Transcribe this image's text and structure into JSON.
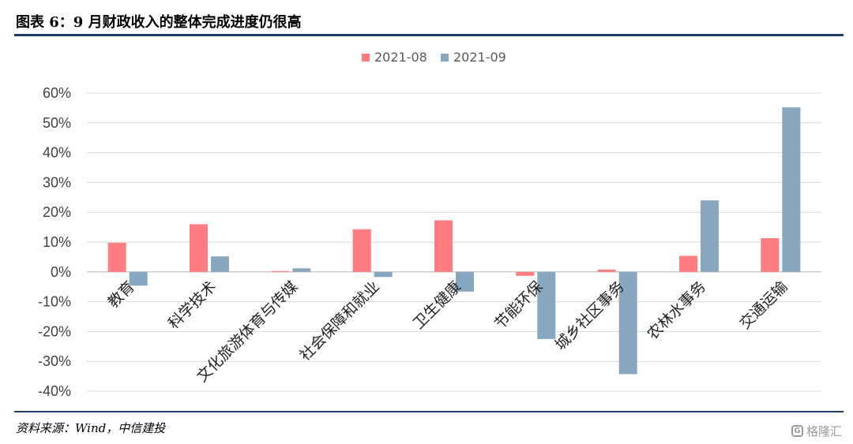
{
  "header": {
    "title": "图表 6：9 月财政收入的整体完成进度仍很高"
  },
  "footer": {
    "source": "资料来源：Wind，中信建投",
    "watermark_logo": "G",
    "watermark_text": "格隆汇"
  },
  "chart_data": {
    "type": "bar",
    "title": "",
    "xlabel": "",
    "ylabel": "",
    "ylim": [
      -40,
      60
    ],
    "yticks": [
      60,
      50,
      40,
      30,
      20,
      10,
      0,
      -10,
      -20,
      -30,
      -40
    ],
    "ytick_suffix": "%",
    "grid": true,
    "legend_position": "top-center",
    "categories": [
      "教育",
      "科学技术",
      "文化旅游体育与传媒",
      "社会保障和就业",
      "卫生健康",
      "节能环保",
      "城乡社区事务",
      "农林水事务",
      "交通运输"
    ],
    "series": [
      {
        "name": "2021-08",
        "color": "#ff7c80",
        "values": [
          9.8,
          16,
          0.3,
          14.3,
          17.3,
          -1.3,
          0.8,
          5.4,
          11.3
        ]
      },
      {
        "name": "2021-09",
        "color": "#87a6bf",
        "values": [
          -4.6,
          5.2,
          1.2,
          -1.7,
          -6.6,
          -22.5,
          -34.3,
          24,
          55.2
        ]
      }
    ]
  }
}
